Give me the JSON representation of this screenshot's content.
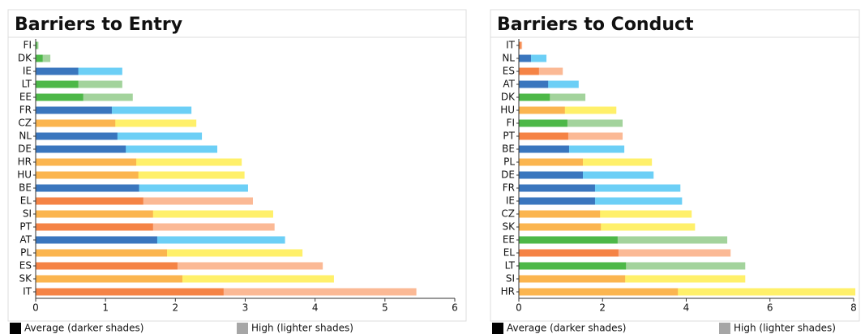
{
  "chart_data": [
    {
      "type": "bar",
      "orientation": "horizontal",
      "title": "Barriers to Entry",
      "categories": [
        "FI",
        "DK",
        "IE",
        "LT",
        "EE",
        "FR",
        "CZ",
        "NL",
        "DE",
        "HR",
        "HU",
        "BE",
        "EL",
        "SI",
        "PT",
        "AT",
        "PL",
        "ES",
        "SK",
        "IT"
      ],
      "series": [
        {
          "name": "Average (darker shades)",
          "color": "#000000",
          "values": [
            0.02,
            0.1,
            0.61,
            0.61,
            0.68,
            1.09,
            1.14,
            1.17,
            1.29,
            1.44,
            1.47,
            1.48,
            1.54,
            1.68,
            1.68,
            1.74,
            1.88,
            2.03,
            2.1,
            2.69
          ],
          "colors": [
            "#4db848",
            "#4db848",
            "#3a76be",
            "#4db848",
            "#4db848",
            "#3a76be",
            "#fbb54f",
            "#3a76be",
            "#3a76be",
            "#fbb54f",
            "#fbb54f",
            "#3a76be",
            "#f58345",
            "#fbb54f",
            "#f58345",
            "#3a76be",
            "#fbb54f",
            "#f58345",
            "#fbb54f",
            "#f58345"
          ]
        },
        {
          "name": "High (lighter shades)",
          "color": "#a6a6a6",
          "values": [
            0.04,
            0.21,
            1.24,
            1.24,
            1.39,
            2.23,
            2.3,
            2.38,
            2.6,
            2.95,
            2.99,
            3.04,
            3.11,
            3.4,
            3.42,
            3.57,
            3.82,
            4.11,
            4.27,
            5.45
          ],
          "colors": [
            "#a3d39c",
            "#a3d39c",
            "#6ccff6",
            "#a3d39c",
            "#a3d39c",
            "#6ccff6",
            "#fff06a",
            "#6ccff6",
            "#6ccff6",
            "#fff06a",
            "#fff06a",
            "#6ccff6",
            "#fbb995",
            "#fff06a",
            "#fbb995",
            "#6ccff6",
            "#fff06a",
            "#fbb995",
            "#fff06a",
            "#fbb995"
          ]
        }
      ],
      "xlim": [
        0,
        6
      ],
      "xticks": [
        0,
        1,
        2,
        3,
        4,
        5,
        6
      ]
    },
    {
      "type": "bar",
      "orientation": "horizontal",
      "title": "Barriers to Conduct",
      "categories": [
        "IT",
        "NL",
        "ES",
        "AT",
        "DK",
        "HU",
        "FI",
        "PT",
        "BE",
        "PL",
        "DE",
        "FR",
        "IE",
        "CZ",
        "SK",
        "EE",
        "EL",
        "LT",
        "SI",
        "HR"
      ],
      "series": [
        {
          "name": "Average (darker shades)",
          "color": "#000000",
          "values": [
            0.05,
            0.29,
            0.48,
            0.7,
            0.74,
            1.1,
            1.16,
            1.18,
            1.2,
            1.53,
            1.53,
            1.82,
            1.82,
            1.94,
            1.96,
            2.36,
            2.38,
            2.56,
            2.54,
            3.8
          ],
          "colors": [
            "#f58345",
            "#3a76be",
            "#f58345",
            "#3a76be",
            "#4db848",
            "#fbb54f",
            "#4db848",
            "#f58345",
            "#3a76be",
            "#fbb54f",
            "#3a76be",
            "#3a76be",
            "#3a76be",
            "#fbb54f",
            "#fbb54f",
            "#4db848",
            "#f58345",
            "#4db848",
            "#fbb54f",
            "#fbb54f"
          ]
        },
        {
          "name": "High (lighter shades)",
          "color": "#a6a6a6",
          "values": [
            0.08,
            0.66,
            1.05,
            1.43,
            1.59,
            2.33,
            2.48,
            2.48,
            2.52,
            3.18,
            3.22,
            3.86,
            3.9,
            4.13,
            4.21,
            4.98,
            5.06,
            5.41,
            5.41,
            8.04
          ],
          "colors": [
            "#fbb995",
            "#6ccff6",
            "#fbb995",
            "#6ccff6",
            "#a3d39c",
            "#fff06a",
            "#a3d39c",
            "#fbb995",
            "#6ccff6",
            "#fff06a",
            "#6ccff6",
            "#6ccff6",
            "#6ccff6",
            "#fff06a",
            "#fff06a",
            "#a3d39c",
            "#fbb995",
            "#a3d39c",
            "#fff06a",
            "#fff06a"
          ]
        }
      ],
      "xlim": [
        0,
        8
      ],
      "xticks": [
        0,
        2,
        4,
        6,
        8
      ]
    }
  ]
}
